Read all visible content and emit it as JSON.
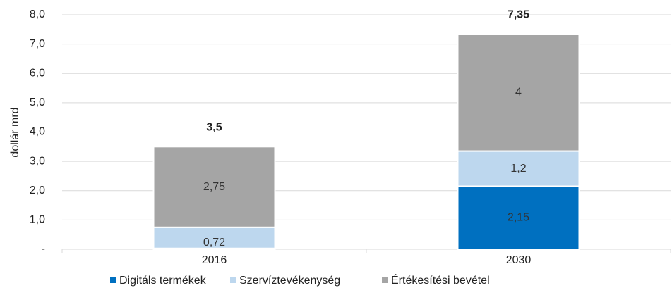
{
  "chart_data": {
    "type": "stacked-bar",
    "y_label": "dollár mrd",
    "categories": [
      "2016",
      "2030"
    ],
    "series": [
      {
        "name": "Digitáls termékek",
        "color": "#0070c0",
        "values": [
          0.03,
          2.15
        ],
        "value_labels": [
          null,
          "2,15"
        ]
      },
      {
        "name": "Szervíztevékenység",
        "color": "#bdd7ee",
        "values": [
          0.72,
          1.2
        ],
        "value_labels": [
          "0,72",
          "1,2"
        ]
      },
      {
        "name": "Értékesítési bevétel",
        "color": "#a5a5a5",
        "values": [
          2.75,
          4
        ],
        "value_labels": [
          "2,75",
          "4"
        ]
      }
    ],
    "totals": {
      "values": [
        3.5,
        7.35
      ],
      "value_labels": [
        "3,5",
        "7,35"
      ]
    },
    "ylim": [
      0,
      8
    ],
    "yticks": [
      {
        "value": 0,
        "label": "-"
      },
      {
        "value": 1,
        "label": "1,0"
      },
      {
        "value": 2,
        "label": "2,0"
      },
      {
        "value": 3,
        "label": "3,0"
      },
      {
        "value": 4,
        "label": "4,0"
      },
      {
        "value": 5,
        "label": "5,0"
      },
      {
        "value": 6,
        "label": "6,0"
      },
      {
        "value": 7,
        "label": "7,0"
      },
      {
        "value": 8,
        "label": "8,0"
      }
    ],
    "grid": true
  }
}
